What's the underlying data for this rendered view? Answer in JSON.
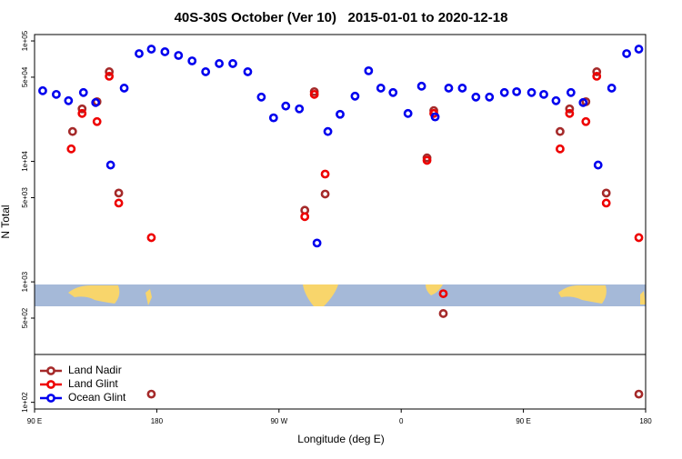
{
  "chart_data": {
    "type": "scatter",
    "title": "40S-30S October (Ver 10)   2015-01-01 to 2020-12-18",
    "x_label": "Longitude (deg E)",
    "y_label": "N Total",
    "log_y": true,
    "legend": "lower left",
    "xlim": [
      90,
      540
    ],
    "ylim": [
      88,
      113000
    ],
    "xticks": [
      {
        "value": 90,
        "label": "90 E"
      },
      180,
      {
        "value": 270,
        "label": "90 W"
      },
      {
        "value": 360,
        "label": "0"
      },
      {
        "value": 450,
        "label": "90 E"
      },
      {
        "value": 540,
        "label": "180"
      }
    ],
    "yticks": [
      {
        "value": 100000,
        "label": "1e+05"
      },
      {
        "value": 50000,
        "label": "5e+04"
      },
      {
        "value": 10000,
        "label": "1e+04"
      },
      {
        "value": 5000,
        "label": "5e+03"
      },
      {
        "value": 1000,
        "label": "1e+03"
      },
      {
        "value": 500,
        "label": "5e+02"
      },
      {
        "value": 100,
        "label": "1e+02"
      }
    ],
    "series": [
      {
        "name": "Land Nadir",
        "color": "#a52a2a",
        "x": [
          118,
          125,
          136,
          145,
          152,
          176,
          289,
          296,
          304,
          379,
          384,
          391,
          477,
          484,
          496,
          504,
          511,
          535
        ],
        "values": [
          17700,
          27300,
          31300,
          55500,
          5460,
          117,
          3930,
          37900,
          5360,
          10700,
          26400,
          546,
          17700,
          27300,
          31300,
          55500,
          5460,
          117
        ]
      },
      {
        "name": "Land Glint",
        "color": "#ee0000",
        "x": [
          117,
          125,
          136,
          145,
          152,
          176,
          289,
          296,
          304,
          379,
          384,
          391,
          477,
          484,
          496,
          504,
          511,
          535
        ],
        "values": [
          12700,
          25000,
          21400,
          50900,
          4510,
          2330,
          3480,
          36000,
          7850,
          10200,
          25000,
          798,
          12700,
          25000,
          21400,
          50900,
          4510,
          2330
        ]
      },
      {
        "name": "Ocean Glint",
        "color": "#0000ee",
        "x": [
          96,
          106,
          115,
          126,
          135,
          146,
          156,
          167,
          176,
          186,
          196,
          206,
          216,
          226,
          236,
          247,
          257,
          266,
          275,
          285,
          298,
          306,
          315,
          326,
          336,
          345,
          354,
          365,
          375,
          385,
          395,
          405,
          415,
          425,
          436,
          445,
          456,
          465,
          474,
          485,
          494,
          505,
          515,
          526,
          535
        ],
        "values": [
          38600,
          36000,
          31900,
          37300,
          30800,
          9330,
          40600,
          78500,
          85500,
          81300,
          75800,
          68300,
          55500,
          64900,
          64900,
          55500,
          34200,
          23000,
          28800,
          27300,
          2100,
          17700,
          24600,
          34800,
          56500,
          40600,
          37300,
          25000,
          42100,
          23400,
          40600,
          40600,
          34200,
          34200,
          37300,
          37900,
          37300,
          36000,
          31900,
          37300,
          30800,
          9330,
          40600,
          78500,
          85500
        ]
      }
    ]
  }
}
